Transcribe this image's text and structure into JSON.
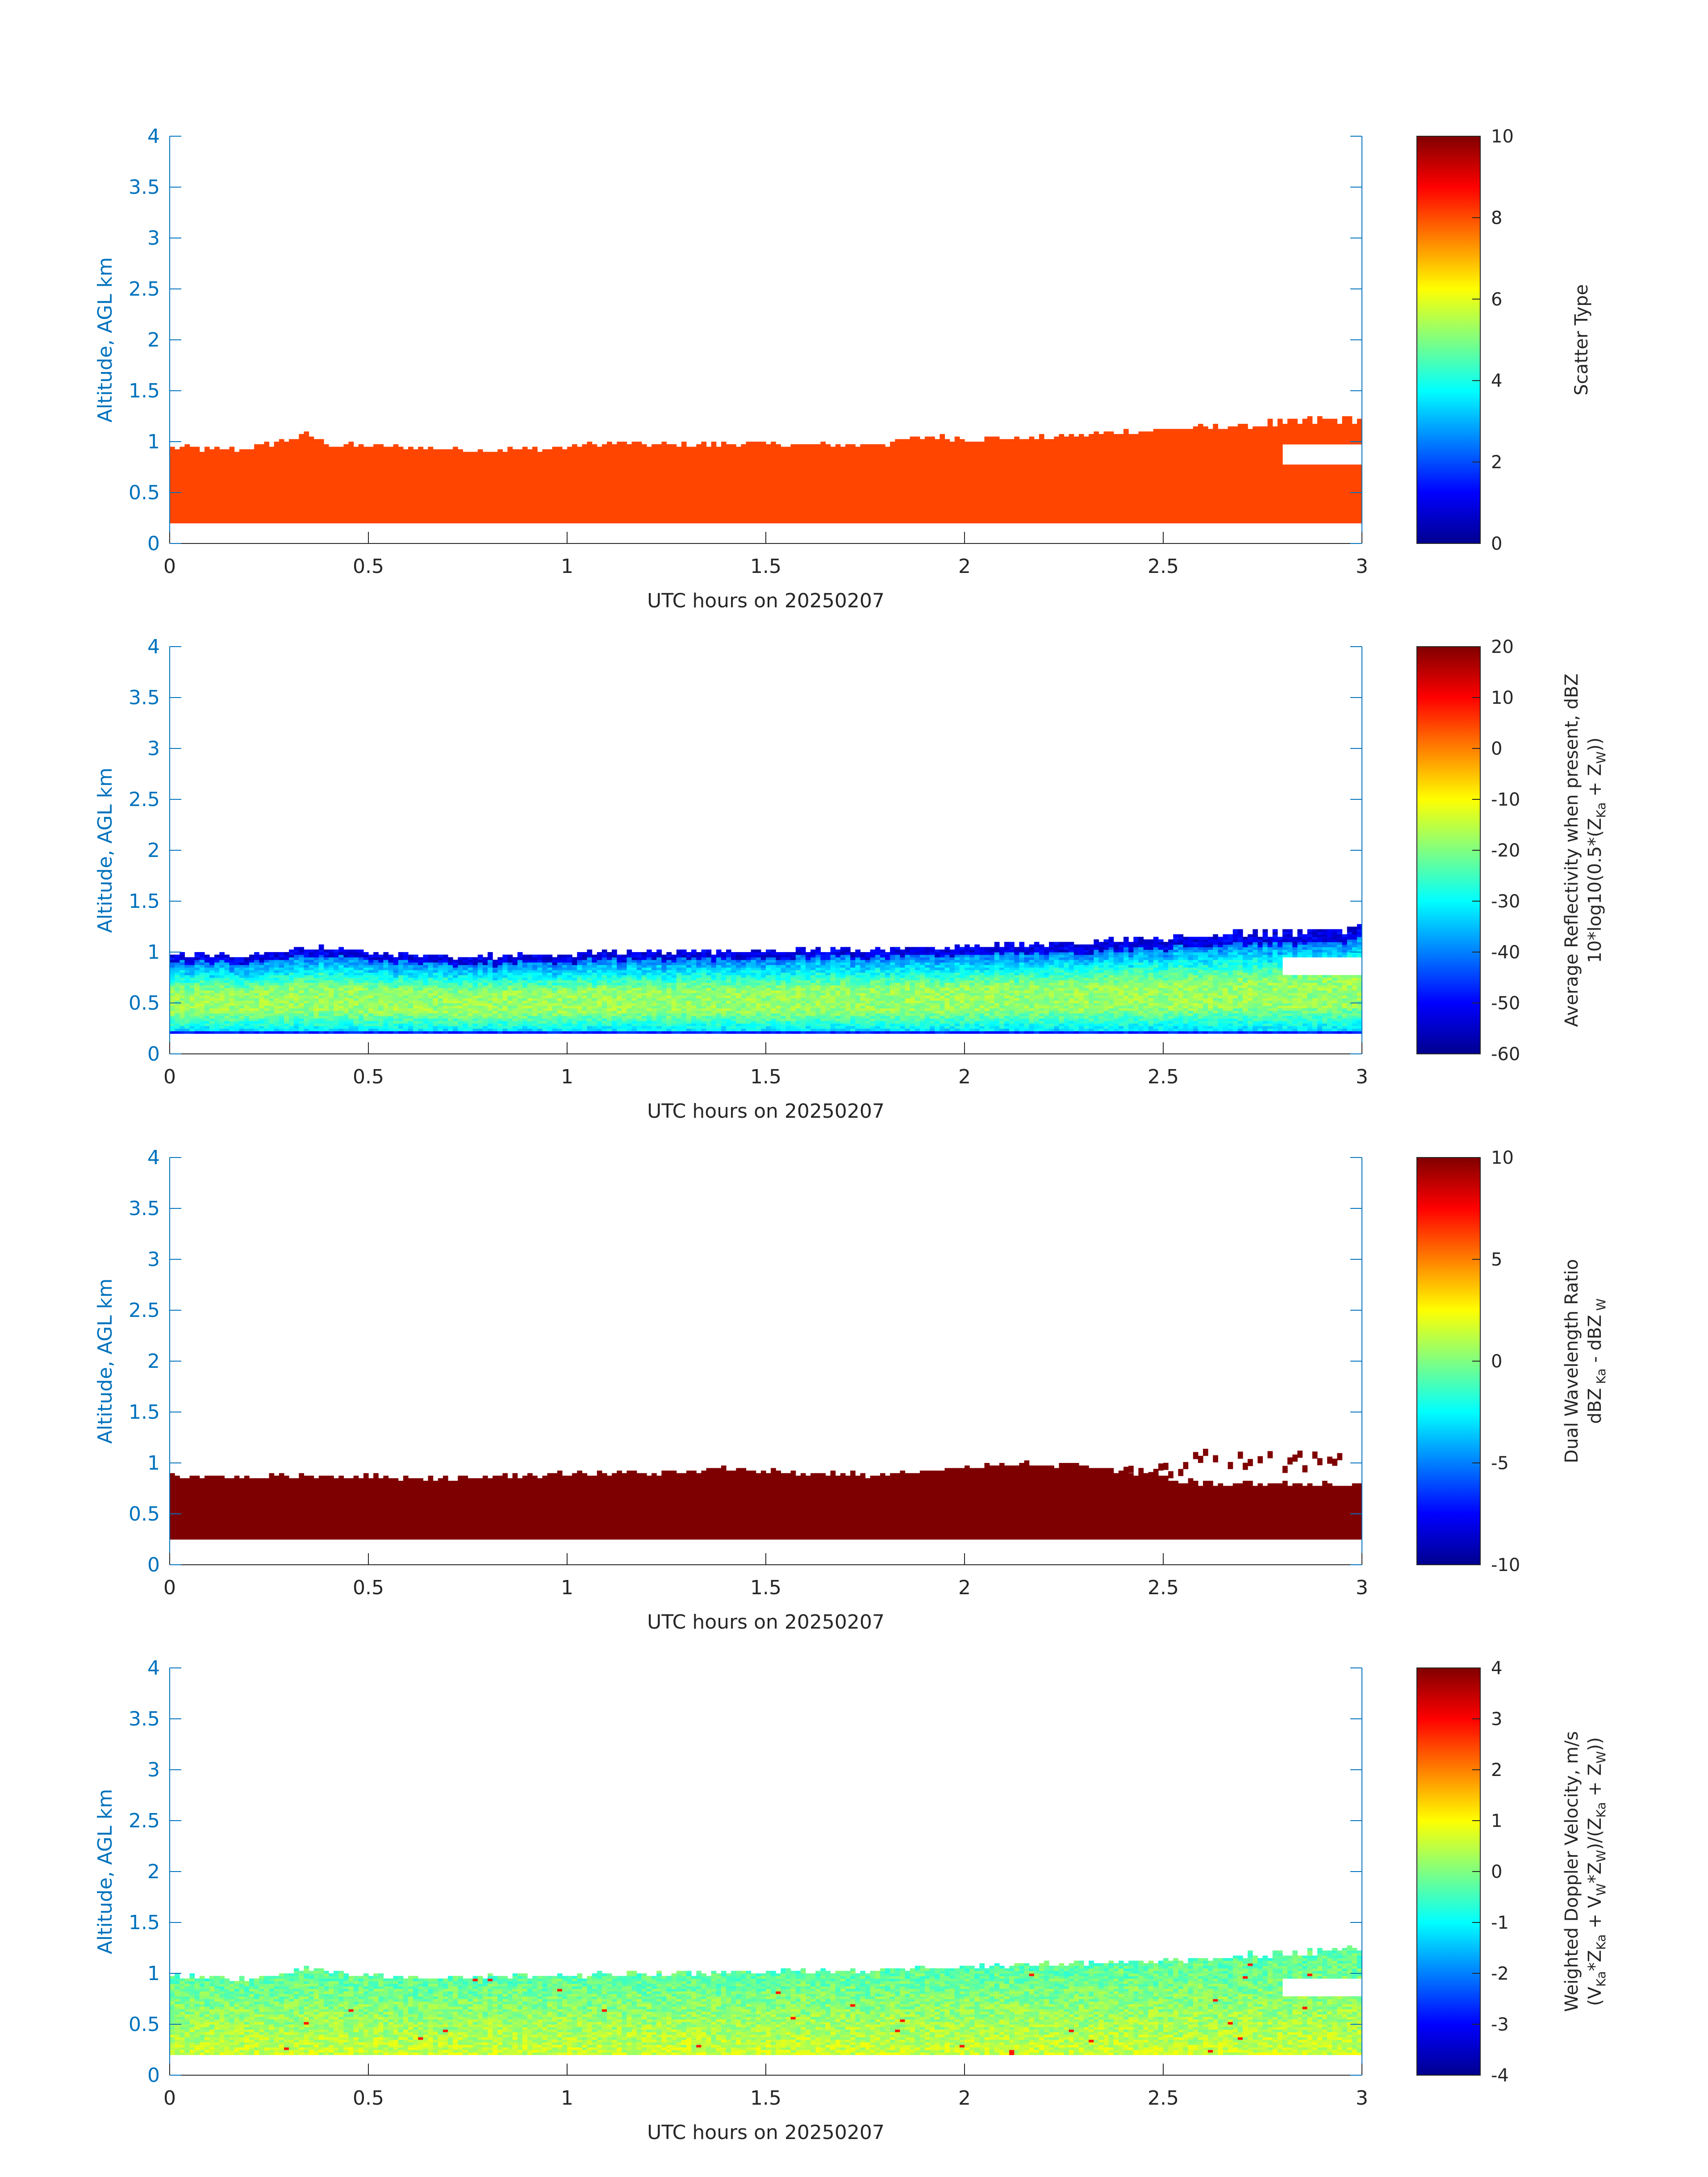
{
  "colors": {
    "axis_blue": "#0072bd",
    "text_dark": "#262626",
    "scatter_fill": "#ff4500",
    "dwr_fill": "#7f0000",
    "colormap": "jet"
  },
  "chart_data": [
    {
      "type": "heatmap",
      "field": "scatter_type",
      "xlabel": "UTC hours on 20250207",
      "ylabel": "Altitude, AGL km",
      "xlim": [
        0,
        3
      ],
      "ylim": [
        0,
        4
      ],
      "xticks": [
        "0",
        "0.5",
        "1",
        "1.5",
        "2",
        "2.5",
        "3"
      ],
      "yticks": [
        "0",
        "0.5",
        "1",
        "1.5",
        "2",
        "2.5",
        "3",
        "3.5",
        "4"
      ],
      "colorbar": {
        "label_lines": [
          "Scatter Type"
        ],
        "range": [
          0,
          10
        ],
        "ticks": [
          "0",
          "2",
          "4",
          "6",
          "8",
          "10"
        ]
      },
      "layer": {
        "base_km": 0.2,
        "value": 8.5,
        "top_km_profile": [
          [
            0.0,
            0.95
          ],
          [
            0.1,
            0.92
          ],
          [
            0.2,
            0.93
          ],
          [
            0.3,
            1.02
          ],
          [
            0.35,
            1.08
          ],
          [
            0.4,
            0.97
          ],
          [
            0.5,
            0.96
          ],
          [
            0.7,
            0.93
          ],
          [
            0.9,
            0.92
          ],
          [
            1.0,
            0.95
          ],
          [
            1.1,
            0.98
          ],
          [
            1.3,
            0.97
          ],
          [
            1.5,
            0.98
          ],
          [
            1.7,
            0.97
          ],
          [
            1.8,
            0.98
          ],
          [
            1.9,
            1.05
          ],
          [
            2.0,
            1.03
          ],
          [
            2.2,
            1.04
          ],
          [
            2.4,
            1.1
          ],
          [
            2.6,
            1.14
          ],
          [
            2.8,
            1.17
          ],
          [
            2.9,
            1.2
          ],
          [
            3.0,
            1.2
          ]
        ],
        "gap_from_hours": 2.8,
        "gap_km": [
          0.78,
          0.98
        ]
      }
    },
    {
      "type": "heatmap",
      "field": "average_reflectivity",
      "xlabel": "UTC hours on 20250207",
      "ylabel": "Altitude, AGL km",
      "xlim": [
        0,
        3
      ],
      "ylim": [
        0,
        4
      ],
      "xticks": [
        "0",
        "0.5",
        "1",
        "1.5",
        "2",
        "2.5",
        "3"
      ],
      "yticks": [
        "0",
        "0.5",
        "1",
        "1.5",
        "2",
        "2.5",
        "3",
        "3.5",
        "4"
      ],
      "colorbar": {
        "label_lines": [
          "Average Reflectivity when present, dBZ",
          "10*log10(0.5*(Z",
          "Ka",
          " + Z",
          "W",
          "))"
        ],
        "range": [
          -60,
          20
        ],
        "ticks": [
          "-60",
          "-50",
          "-40",
          "-30",
          "-20",
          "-10",
          "0",
          "10",
          "20"
        ]
      },
      "layer": {
        "base_km": 0.2,
        "top_km_profile": [
          [
            0.0,
            0.98
          ],
          [
            0.2,
            0.97
          ],
          [
            0.35,
            1.05
          ],
          [
            0.5,
            1.0
          ],
          [
            0.7,
            0.95
          ],
          [
            1.0,
            0.99
          ],
          [
            1.2,
            1.0
          ],
          [
            1.5,
            1.02
          ],
          [
            1.8,
            1.03
          ],
          [
            2.0,
            1.06
          ],
          [
            2.3,
            1.1
          ],
          [
            2.6,
            1.15
          ],
          [
            2.8,
            1.18
          ],
          [
            3.0,
            1.22
          ]
        ],
        "core_dbz": -18,
        "edge_dbz": -48,
        "gap_from_hours": 2.8,
        "gap_km": [
          0.78,
          0.95
        ]
      }
    },
    {
      "type": "heatmap",
      "field": "dual_wavelength_ratio",
      "xlabel": "UTC hours on 20250207",
      "ylabel": "Altitude, AGL km",
      "xlim": [
        0,
        3
      ],
      "ylim": [
        0,
        4
      ],
      "xticks": [
        "0",
        "0.5",
        "1",
        "1.5",
        "2",
        "2.5",
        "3"
      ],
      "yticks": [
        "0",
        "0.5",
        "1",
        "1.5",
        "2",
        "2.5",
        "3",
        "3.5",
        "4"
      ],
      "colorbar": {
        "label_lines": [
          "Dual Wavelength Ratio",
          "dBZ",
          " Ka",
          " - dBZ",
          " W"
        ],
        "range": [
          -10,
          10
        ],
        "ticks": [
          "-10",
          "-5",
          "0",
          "5",
          "10"
        ]
      },
      "layer": {
        "base_km": 0.25,
        "value": 10,
        "top_km_profile": [
          [
            0.0,
            0.88
          ],
          [
            0.2,
            0.86
          ],
          [
            0.3,
            0.88
          ],
          [
            0.5,
            0.87
          ],
          [
            0.7,
            0.85
          ],
          [
            1.0,
            0.9
          ],
          [
            1.3,
            0.9
          ],
          [
            1.4,
            0.95
          ],
          [
            1.6,
            0.9
          ],
          [
            1.8,
            0.88
          ],
          [
            2.0,
            0.95
          ],
          [
            2.1,
            1.0
          ],
          [
            2.3,
            0.98
          ],
          [
            2.4,
            0.9
          ],
          [
            2.6,
            0.8
          ],
          [
            2.8,
            0.8
          ],
          [
            3.0,
            0.78
          ]
        ],
        "patches": [
          {
            "x": [
              2.4,
              2.55
            ],
            "y": [
              0.8,
              1.05
            ]
          },
          {
            "x": [
              2.55,
              2.95
            ],
            "y": [
              0.9,
              1.15
            ]
          }
        ]
      }
    },
    {
      "type": "heatmap",
      "field": "weighted_doppler_velocity",
      "xlabel": "UTC hours on 20250207",
      "ylabel": "Altitude, AGL km",
      "xlim": [
        0,
        3
      ],
      "ylim": [
        0,
        4
      ],
      "xticks": [
        "0",
        "0.5",
        "1",
        "1.5",
        "2",
        "2.5",
        "3"
      ],
      "yticks": [
        "0",
        "0.5",
        "1",
        "1.5",
        "2",
        "2.5",
        "3",
        "3.5",
        "4"
      ],
      "colorbar": {
        "label_lines": [
          "Weighted Doppler Velocity, m/s",
          "(V",
          "Ka",
          "*Z",
          "Ka",
          " + V",
          "W",
          "*Z",
          "W",
          ")/(Z",
          "Ka",
          " + Z",
          "W",
          "))"
        ],
        "range": [
          -4,
          4
        ],
        "ticks": [
          "-4",
          "-3",
          "-2",
          "-1",
          "0",
          "1",
          "2",
          "3",
          "4"
        ]
      },
      "layer": {
        "base_km": 0.2,
        "top_km_profile": [
          [
            0.0,
            0.97
          ],
          [
            0.2,
            0.95
          ],
          [
            0.35,
            1.05
          ],
          [
            0.5,
            0.97
          ],
          [
            0.7,
            0.96
          ],
          [
            1.0,
            0.98
          ],
          [
            1.3,
            1.0
          ],
          [
            1.6,
            1.02
          ],
          [
            1.9,
            1.05
          ],
          [
            2.2,
            1.1
          ],
          [
            2.5,
            1.13
          ],
          [
            2.8,
            1.18
          ],
          [
            3.0,
            1.22
          ]
        ],
        "typical_ms": -0.3,
        "lower_ms": 0.8,
        "gap_from_hours": 2.8,
        "gap_km": [
          0.78,
          0.95
        ]
      }
    }
  ]
}
